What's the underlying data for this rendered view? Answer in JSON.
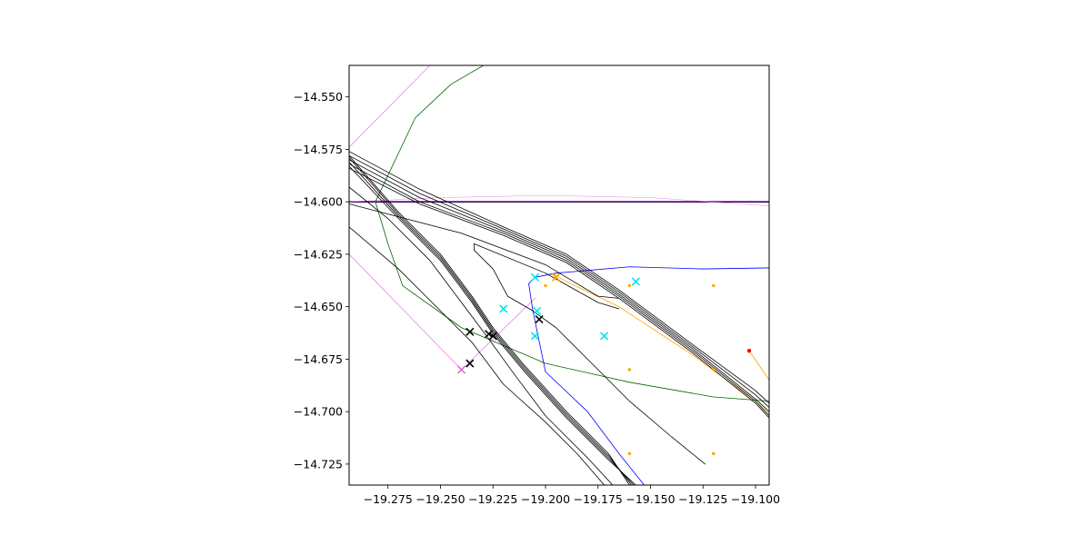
{
  "chart_data": {
    "type": "line",
    "title": "",
    "xlabel": "",
    "ylabel": "",
    "xlim": [
      -19.2935,
      -19.0935
    ],
    "ylim": [
      -14.735,
      -14.535
    ],
    "grid": false,
    "x_ticks": [
      -19.275,
      -19.25,
      -19.225,
      -19.2,
      -19.175,
      -19.15,
      -19.125,
      -19.1
    ],
    "x_tick_labels": [
      "−19.275",
      "−19.250",
      "−19.225",
      "−19.200",
      "−19.175",
      "−19.150",
      "−19.125",
      "−19.100"
    ],
    "y_ticks": [
      -14.55,
      -14.575,
      -14.6,
      -14.625,
      -14.65,
      -14.675,
      -14.7,
      -14.725
    ],
    "y_tick_labels": [
      "−14.550",
      "−14.575",
      "−14.600",
      "−14.625",
      "−14.650",
      "−14.675",
      "−14.700",
      "−14.725"
    ],
    "series": [
      {
        "color": "#9400d3",
        "width": 1.6,
        "points": [
          [
            -19.2935,
            -14.6
          ],
          [
            -19.0935,
            -14.6
          ]
        ]
      },
      {
        "color": "#000000",
        "width": 0.9,
        "points": [
          [
            -19.2935,
            -14.6
          ],
          [
            -19.0935,
            -14.6
          ]
        ]
      },
      {
        "color": "#ee82ee",
        "width": 0.5,
        "points": [
          [
            -19.2935,
            -14.6
          ],
          [
            -19.25,
            -14.598
          ],
          [
            -19.2,
            -14.597
          ],
          [
            -19.15,
            -14.598
          ],
          [
            -19.0935,
            -14.602
          ]
        ]
      },
      {
        "color": "#ee82ee",
        "width": 0.8,
        "points": [
          [
            -19.2935,
            -14.574
          ],
          [
            -19.255,
            -14.535
          ]
        ]
      },
      {
        "color": "#ee82ee",
        "width": 0.8,
        "points": [
          [
            -19.2935,
            -14.625
          ],
          [
            -19.24,
            -14.68
          ],
          [
            -19.205,
            -14.646
          ]
        ]
      },
      {
        "color": "#006400",
        "width": 0.8,
        "points": [
          [
            -19.281,
            -14.6
          ],
          [
            -19.262,
            -14.56
          ],
          [
            -19.245,
            -14.544
          ],
          [
            -19.2295,
            -14.535
          ]
        ]
      },
      {
        "color": "#006400",
        "width": 0.8,
        "points": [
          [
            -19.281,
            -14.6
          ],
          [
            -19.275,
            -14.62
          ],
          [
            -19.268,
            -14.64
          ],
          [
            -19.24,
            -14.66
          ],
          [
            -19.2,
            -14.677
          ],
          [
            -19.16,
            -14.686
          ],
          [
            -19.12,
            -14.693
          ],
          [
            -19.0935,
            -14.695
          ]
        ]
      },
      {
        "color": "#0000ff",
        "width": 0.8,
        "points": [
          [
            -19.0935,
            -14.6315
          ],
          [
            -19.125,
            -14.632
          ],
          [
            -19.16,
            -14.631
          ],
          [
            -19.195,
            -14.634
          ],
          [
            -19.205,
            -14.636
          ],
          [
            -19.208,
            -14.639
          ]
        ]
      },
      {
        "color": "#0000ff",
        "width": 0.8,
        "points": [
          [
            -19.208,
            -14.639
          ],
          [
            -19.206,
            -14.652
          ],
          [
            -19.2,
            -14.681
          ],
          [
            -19.18,
            -14.7
          ],
          [
            -19.165,
            -14.72
          ],
          [
            -19.153,
            -14.735
          ]
        ]
      },
      {
        "color": "#ffa500",
        "width": 0.8,
        "points": [
          [
            -19.197,
            -14.634
          ],
          [
            -19.19,
            -14.638
          ],
          [
            -19.165,
            -14.65
          ],
          [
            -19.13,
            -14.673
          ],
          [
            -19.1,
            -14.695
          ],
          [
            -19.0935,
            -14.701
          ]
        ]
      },
      {
        "color": "#ffa500",
        "width": 0.8,
        "points": [
          [
            -19.103,
            -14.671
          ],
          [
            -19.0935,
            -14.685
          ]
        ]
      },
      {
        "color": "#000000",
        "width": 0.8,
        "points": [
          [
            -19.2935,
            -14.576
          ],
          [
            -19.26,
            -14.594
          ],
          [
            -19.22,
            -14.612
          ],
          [
            -19.19,
            -14.625
          ],
          [
            -19.165,
            -14.642
          ],
          [
            -19.13,
            -14.668
          ],
          [
            -19.1,
            -14.69
          ],
          [
            -19.0935,
            -14.696
          ]
        ]
      },
      {
        "color": "#000000",
        "width": 0.8,
        "points": [
          [
            -19.2935,
            -14.578
          ],
          [
            -19.26,
            -14.596
          ],
          [
            -19.22,
            -14.613
          ],
          [
            -19.19,
            -14.626
          ],
          [
            -19.165,
            -14.643
          ],
          [
            -19.13,
            -14.669
          ],
          [
            -19.1,
            -14.692
          ],
          [
            -19.0935,
            -14.698
          ]
        ]
      },
      {
        "color": "#000000",
        "width": 0.8,
        "points": [
          [
            -19.2935,
            -14.58
          ],
          [
            -19.26,
            -14.598
          ],
          [
            -19.22,
            -14.614
          ],
          [
            -19.19,
            -14.627
          ],
          [
            -19.165,
            -14.644
          ],
          [
            -19.13,
            -14.67
          ],
          [
            -19.1,
            -14.694
          ],
          [
            -19.0935,
            -14.7
          ]
        ]
      },
      {
        "color": "#000000",
        "width": 0.8,
        "points": [
          [
            -19.2935,
            -14.582
          ],
          [
            -19.26,
            -14.6
          ],
          [
            -19.22,
            -14.615
          ],
          [
            -19.19,
            -14.628
          ],
          [
            -19.165,
            -14.645
          ],
          [
            -19.13,
            -14.671
          ],
          [
            -19.1,
            -14.695
          ],
          [
            -19.0935,
            -14.702
          ]
        ]
      },
      {
        "color": "#000000",
        "width": 0.8,
        "points": [
          [
            -19.2935,
            -14.584
          ],
          [
            -19.26,
            -14.601
          ],
          [
            -19.22,
            -14.616
          ],
          [
            -19.19,
            -14.629
          ],
          [
            -19.165,
            -14.646
          ],
          [
            -19.13,
            -14.672
          ],
          [
            -19.1,
            -14.696
          ],
          [
            -19.0935,
            -14.703
          ]
        ]
      },
      {
        "color": "#000000",
        "width": 0.8,
        "points": [
          [
            -19.2935,
            -14.601
          ],
          [
            -19.24,
            -14.615
          ],
          [
            -19.2,
            -14.63
          ],
          [
            -19.175,
            -14.645
          ],
          [
            -19.165,
            -14.646
          ]
        ]
      },
      {
        "color": "#000000",
        "width": 0.8,
        "points": [
          [
            -19.2935,
            -14.578
          ],
          [
            -19.27,
            -14.605
          ],
          [
            -19.25,
            -14.625
          ],
          [
            -19.235,
            -14.645
          ],
          [
            -19.225,
            -14.66
          ],
          [
            -19.21,
            -14.678
          ],
          [
            -19.19,
            -14.7
          ],
          [
            -19.17,
            -14.72
          ],
          [
            -19.16,
            -14.735
          ]
        ]
      },
      {
        "color": "#000000",
        "width": 0.8,
        "points": [
          [
            -19.2935,
            -14.579
          ],
          [
            -19.27,
            -14.606
          ],
          [
            -19.25,
            -14.626
          ],
          [
            -19.235,
            -14.646
          ],
          [
            -19.225,
            -14.661
          ],
          [
            -19.21,
            -14.679
          ],
          [
            -19.19,
            -14.701
          ],
          [
            -19.17,
            -14.721
          ],
          [
            -19.159,
            -14.735
          ]
        ]
      },
      {
        "color": "#000000",
        "width": 0.8,
        "points": [
          [
            -19.2935,
            -14.581
          ],
          [
            -19.27,
            -14.607
          ],
          [
            -19.25,
            -14.627
          ],
          [
            -19.235,
            -14.647
          ],
          [
            -19.225,
            -14.662
          ],
          [
            -19.21,
            -14.68
          ],
          [
            -19.19,
            -14.702
          ],
          [
            -19.17,
            -14.722
          ],
          [
            -19.158,
            -14.735
          ]
        ]
      },
      {
        "color": "#000000",
        "width": 0.8,
        "points": [
          [
            -19.2935,
            -14.583
          ],
          [
            -19.27,
            -14.608
          ],
          [
            -19.25,
            -14.628
          ],
          [
            -19.235,
            -14.648
          ],
          [
            -19.225,
            -14.663
          ],
          [
            -19.21,
            -14.681
          ],
          [
            -19.19,
            -14.703
          ],
          [
            -19.17,
            -14.723
          ],
          [
            -19.157,
            -14.735
          ]
        ]
      },
      {
        "color": "#000000",
        "width": 0.8,
        "points": [
          [
            -19.2935,
            -14.593
          ],
          [
            -19.275,
            -14.608
          ],
          [
            -19.255,
            -14.628
          ],
          [
            -19.24,
            -14.648
          ],
          [
            -19.228,
            -14.664
          ],
          [
            -19.215,
            -14.682
          ],
          [
            -19.2,
            -14.702
          ],
          [
            -19.18,
            -14.722
          ],
          [
            -19.168,
            -14.735
          ]
        ]
      },
      {
        "color": "#000000",
        "width": 0.8,
        "points": [
          [
            -19.2935,
            -14.612
          ],
          [
            -19.27,
            -14.632
          ],
          [
            -19.25,
            -14.652
          ],
          [
            -19.235,
            -14.667
          ],
          [
            -19.22,
            -14.687
          ],
          [
            -19.2,
            -14.705
          ],
          [
            -19.185,
            -14.72
          ],
          [
            -19.172,
            -14.735
          ]
        ]
      },
      {
        "color": "#000000",
        "width": 0.8,
        "points": [
          [
            -19.234,
            -14.62
          ],
          [
            -19.234,
            -14.623
          ],
          [
            -19.225,
            -14.632
          ],
          [
            -19.218,
            -14.645
          ],
          [
            -19.206,
            -14.652
          ],
          [
            -19.195,
            -14.66
          ],
          [
            -19.18,
            -14.675
          ],
          [
            -19.16,
            -14.695
          ],
          [
            -19.14,
            -14.712
          ],
          [
            -19.124,
            -14.725
          ]
        ]
      },
      {
        "color": "#000000",
        "width": 0.8,
        "points": [
          [
            -19.234,
            -14.62
          ],
          [
            -19.2,
            -14.634
          ],
          [
            -19.175,
            -14.648
          ],
          [
            -19.165,
            -14.651
          ]
        ]
      }
    ],
    "markers": [
      {
        "x": -19.205,
        "y": -14.636,
        "marker": "x",
        "color": "#00e5ee"
      },
      {
        "x": -19.22,
        "y": -14.651,
        "marker": "x",
        "color": "#00e5ee"
      },
      {
        "x": -19.204,
        "y": -14.652,
        "marker": "x",
        "color": "#00e5ee"
      },
      {
        "x": -19.205,
        "y": -14.664,
        "marker": "x",
        "color": "#00e5ee"
      },
      {
        "x": -19.157,
        "y": -14.638,
        "marker": "x",
        "color": "#00e5ee"
      },
      {
        "x": -19.172,
        "y": -14.664,
        "marker": "x",
        "color": "#00e5ee"
      },
      {
        "x": -19.236,
        "y": -14.662,
        "marker": "x",
        "color": "#000000"
      },
      {
        "x": -19.236,
        "y": -14.677,
        "marker": "x",
        "color": "#000000"
      },
      {
        "x": -19.227,
        "y": -14.663,
        "marker": "x",
        "color": "#000000"
      },
      {
        "x": -19.225,
        "y": -14.664,
        "marker": "x",
        "color": "#000000"
      },
      {
        "x": -19.203,
        "y": -14.656,
        "marker": "x",
        "color": "#000000"
      },
      {
        "x": -19.24,
        "y": -14.68,
        "marker": "x",
        "color": "#da70d6"
      },
      {
        "x": -19.195,
        "y": -14.636,
        "marker": "x",
        "color": "#ffa500"
      },
      {
        "x": -19.2,
        "y": -14.64,
        "marker": "dot",
        "color": "#ffa500"
      },
      {
        "x": -19.16,
        "y": -14.64,
        "marker": "dot",
        "color": "#ffa500"
      },
      {
        "x": -19.12,
        "y": -14.64,
        "marker": "dot",
        "color": "#ffa500"
      },
      {
        "x": -19.16,
        "y": -14.68,
        "marker": "dot",
        "color": "#ffa500"
      },
      {
        "x": -19.12,
        "y": -14.68,
        "marker": "dot",
        "color": "#ffa500"
      },
      {
        "x": -19.16,
        "y": -14.72,
        "marker": "dot",
        "color": "#ffa500"
      },
      {
        "x": -19.12,
        "y": -14.72,
        "marker": "dot",
        "color": "#ffa500"
      },
      {
        "x": -19.103,
        "y": -14.671,
        "marker": "dot",
        "color": "#ff0000"
      }
    ]
  }
}
